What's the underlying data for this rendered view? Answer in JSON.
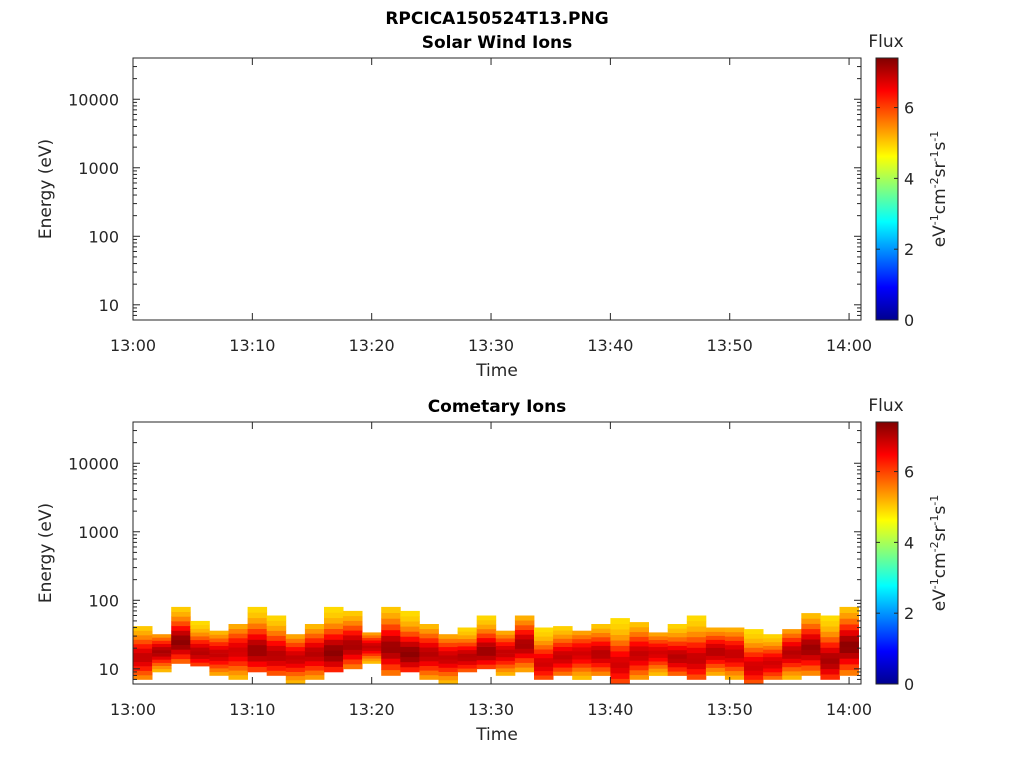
{
  "figure": {
    "title": "RPCICA150524T13.PNG"
  },
  "chart_data": [
    {
      "type": "heatmap",
      "title": "Solar Wind Ions",
      "xlabel": "Time",
      "ylabel": "Energy (eV)",
      "x_ticks": [
        "13:00",
        "13:10",
        "13:20",
        "13:30",
        "13:40",
        "13:50",
        "14:00"
      ],
      "xlim_minutes": [
        0,
        61
      ],
      "y_scale": "log",
      "y_ticks": [
        "10",
        "100",
        "1000",
        "10000"
      ],
      "ylim": [
        6,
        40000
      ],
      "colorbar": {
        "title": "Flux",
        "label": "eV-1cm-2sr-1s-1",
        "ticks": [
          "0",
          "2",
          "4",
          "6"
        ],
        "range": [
          0,
          7.4
        ]
      },
      "blocks": []
    },
    {
      "type": "heatmap",
      "title": "Cometary Ions",
      "xlabel": "Time",
      "ylabel": "Energy (eV)",
      "x_ticks": [
        "13:00",
        "13:10",
        "13:20",
        "13:30",
        "13:40",
        "13:50",
        "14:00"
      ],
      "xlim_minutes": [
        0,
        61
      ],
      "y_scale": "log",
      "y_ticks": [
        "10",
        "100",
        "1000",
        "10000"
      ],
      "ylim": [
        6,
        40000
      ],
      "colorbar": {
        "title": "Flux",
        "label": "eV-1cm-2sr-1s-1",
        "ticks": [
          "0",
          "2",
          "4",
          "6"
        ],
        "range": [
          0,
          7.4
        ]
      },
      "blocks": [
        {
          "t": 0.0,
          "emin": 7,
          "emax": 42,
          "peak": 6.9
        },
        {
          "t": 1.6,
          "emin": 9,
          "emax": 32,
          "peak": 7.1
        },
        {
          "t": 3.2,
          "emin": 12,
          "emax": 80,
          "peak": 7.3
        },
        {
          "t": 4.8,
          "emin": 11,
          "emax": 50,
          "peak": 7.0
        },
        {
          "t": 6.4,
          "emin": 8,
          "emax": 36,
          "peak": 6.9
        },
        {
          "t": 8.0,
          "emin": 7,
          "emax": 45,
          "peak": 6.8
        },
        {
          "t": 9.6,
          "emin": 9,
          "emax": 80,
          "peak": 7.2
        },
        {
          "t": 11.2,
          "emin": 8,
          "emax": 60,
          "peak": 7.0
        },
        {
          "t": 12.8,
          "emin": 6,
          "emax": 32,
          "peak": 6.9
        },
        {
          "t": 14.4,
          "emin": 7,
          "emax": 45,
          "peak": 7.0
        },
        {
          "t": 16.0,
          "emin": 9,
          "emax": 80,
          "peak": 7.3
        },
        {
          "t": 17.6,
          "emin": 10,
          "emax": 70,
          "peak": 7.1
        },
        {
          "t": 19.2,
          "emin": 12,
          "emax": 34,
          "peak": 6.9
        },
        {
          "t": 20.8,
          "emin": 8,
          "emax": 80,
          "peak": 7.2
        },
        {
          "t": 22.4,
          "emin": 9,
          "emax": 70,
          "peak": 7.3
        },
        {
          "t": 24.0,
          "emin": 7,
          "emax": 45,
          "peak": 7.0
        },
        {
          "t": 25.6,
          "emin": 6,
          "emax": 32,
          "peak": 6.9
        },
        {
          "t": 27.2,
          "emin": 9,
          "emax": 40,
          "peak": 7.0
        },
        {
          "t": 28.8,
          "emin": 10,
          "emax": 60,
          "peak": 7.2
        },
        {
          "t": 30.4,
          "emin": 8,
          "emax": 36,
          "peak": 6.9
        },
        {
          "t": 32.0,
          "emin": 9,
          "emax": 60,
          "peak": 7.1
        },
        {
          "t": 33.6,
          "emin": 7,
          "emax": 40,
          "peak": 6.8
        },
        {
          "t": 35.2,
          "emin": 8,
          "emax": 42,
          "peak": 6.9
        },
        {
          "t": 36.8,
          "emin": 7,
          "emax": 36,
          "peak": 6.8
        },
        {
          "t": 38.4,
          "emin": 8,
          "emax": 45,
          "peak": 7.0
        },
        {
          "t": 40.0,
          "emin": 6,
          "emax": 55,
          "peak": 6.8
        },
        {
          "t": 41.6,
          "emin": 7,
          "emax": 48,
          "peak": 6.9
        },
        {
          "t": 43.2,
          "emin": 8,
          "emax": 34,
          "peak": 6.8
        },
        {
          "t": 44.8,
          "emin": 8,
          "emax": 45,
          "peak": 7.0
        },
        {
          "t": 46.4,
          "emin": 7,
          "emax": 60,
          "peak": 6.9
        },
        {
          "t": 48.0,
          "emin": 8,
          "emax": 40,
          "peak": 7.0
        },
        {
          "t": 49.6,
          "emin": 7,
          "emax": 40,
          "peak": 6.9
        },
        {
          "t": 51.2,
          "emin": 6,
          "emax": 38,
          "peak": 6.8
        },
        {
          "t": 52.8,
          "emin": 7,
          "emax": 32,
          "peak": 6.8
        },
        {
          "t": 54.4,
          "emin": 7,
          "emax": 38,
          "peak": 7.0
        },
        {
          "t": 56.0,
          "emin": 8,
          "emax": 65,
          "peak": 7.2
        },
        {
          "t": 57.6,
          "emin": 7,
          "emax": 60,
          "peak": 7.1
        },
        {
          "t": 59.2,
          "emin": 8,
          "emax": 80,
          "peak": 7.3
        }
      ]
    }
  ]
}
